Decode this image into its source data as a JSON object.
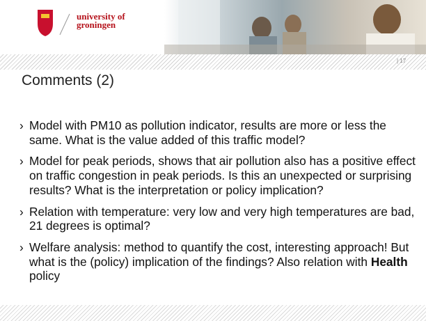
{
  "header": {
    "logo_line1": "university of",
    "logo_line2": "groningen",
    "page_number": "| 17"
  },
  "title": "Comments (2)",
  "bullets": [
    [
      "Model with PM10 as pollution indicator, results are more or less the same. What is the value added of this traffic model?"
    ],
    [
      "Model for peak periods, shows that air pollution also has a positive effect on traffic congestion in peak periods. Is this an unexpected or surprising results? What is the interpretation or policy implication?"
    ],
    [
      "Relation with temperature: very low and very high temperatures are bad, 21 degrees is optimal?"
    ],
    [
      "Welfare analysis: method to quantify the cost, interesting approach! But what is the (policy) implication of the findings? Also relation with ",
      "Health",
      " policy"
    ]
  ]
}
